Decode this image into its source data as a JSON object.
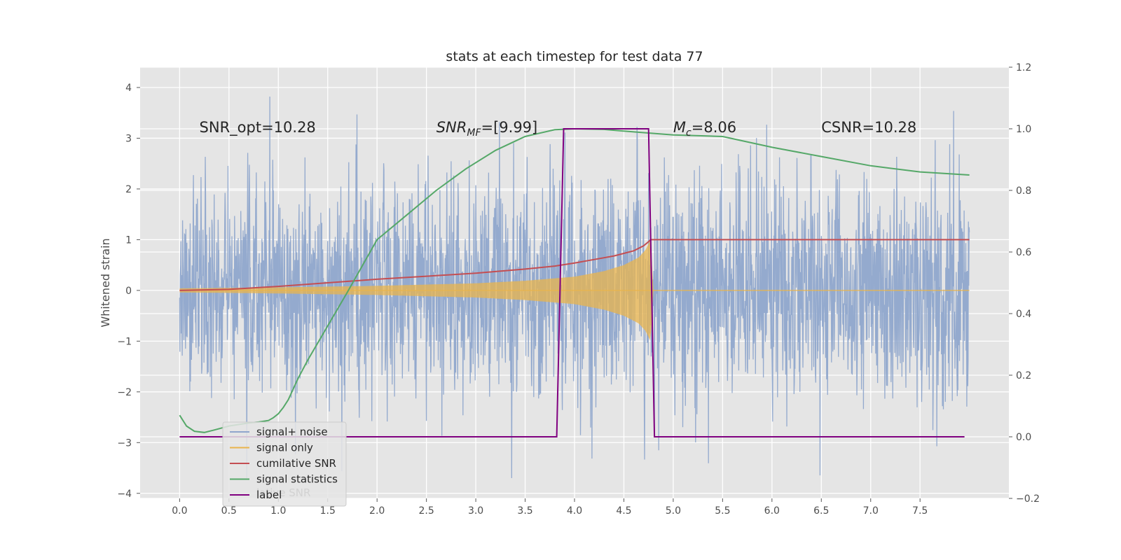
{
  "chart_data": {
    "type": "line",
    "title": "stats at each timestep for test data 77",
    "ylabel": "Whitened strain",
    "xlabel": "",
    "xlim": [
      -0.4,
      8.4
    ],
    "ylim": [
      -4.1,
      4.4
    ],
    "y2lim": [
      -0.2,
      1.2
    ],
    "xticks": [
      0.0,
      0.5,
      1.0,
      1.5,
      2.0,
      2.5,
      3.0,
      3.5,
      4.0,
      4.5,
      5.0,
      5.5,
      6.0,
      6.5,
      7.0,
      7.5
    ],
    "xtick_labels": [
      "0.0",
      "0.5",
      "1.0",
      "1.5",
      "2.0",
      "2.5",
      "3.0",
      "3.5",
      "4.0",
      "4.5",
      "5.0",
      "5.5",
      "6.0",
      "6.5",
      "7.0",
      "7.5"
    ],
    "yticks": [
      -4,
      -3,
      -2,
      -1,
      0,
      1,
      2,
      3,
      4
    ],
    "ytick_labels": [
      "−4",
      "−3",
      "−2",
      "−1",
      "0",
      "1",
      "2",
      "3",
      "4"
    ],
    "y2ticks": [
      -0.2,
      0.0,
      0.2,
      0.4,
      0.6,
      0.8,
      1.0,
      1.2
    ],
    "y2tick_labels": [
      "−0.2",
      "0.0",
      "0.2",
      "0.4",
      "0.6",
      "0.8",
      "1.0",
      "1.2"
    ],
    "grid": true,
    "legend": {
      "placement": "lower-left",
      "ghost_text": "lative SNR"
    },
    "annotations": [
      {
        "x": 0.2,
        "y": 3.2,
        "text": "SNR_opt=10.28"
      },
      {
        "x": 2.6,
        "y": 3.2,
        "text": "SNR_MF=[9.99]"
      },
      {
        "x": 5.0,
        "y": 3.2,
        "text": "M_c=8.06"
      },
      {
        "x": 6.5,
        "y": 3.2,
        "text": "CSNR=10.28"
      }
    ],
    "series": [
      {
        "name": "signal+ noise",
        "axis": "left",
        "color": "#8fa6cc",
        "kind": "noise",
        "x_range": [
          0.0,
          8.0
        ],
        "typical_amplitude": 1.1,
        "min": -3.7,
        "max": 4.0
      },
      {
        "name": "signal only",
        "axis": "left",
        "color": "#e9b44c",
        "kind": "chirp",
        "x_range": [
          0.0,
          8.0
        ],
        "merger_time": 4.77,
        "envelope": {
          "x": [
            0.0,
            1.0,
            2.0,
            3.0,
            3.5,
            4.0,
            4.3,
            4.5,
            4.65,
            4.72,
            4.77,
            4.8
          ],
          "y": [
            0.04,
            0.06,
            0.09,
            0.14,
            0.19,
            0.27,
            0.38,
            0.5,
            0.65,
            0.8,
            1.0,
            0.0
          ]
        }
      },
      {
        "name": "cumilative SNR",
        "axis": "left",
        "color": "#c44e52",
        "x": [
          0.0,
          0.5,
          1.0,
          1.5,
          2.0,
          2.5,
          3.0,
          3.5,
          3.8,
          4.0,
          4.2,
          4.4,
          4.6,
          4.7,
          4.75,
          4.77,
          4.8,
          5.5,
          6.5,
          8.0
        ],
        "y": [
          0.0,
          0.02,
          0.08,
          0.15,
          0.22,
          0.28,
          0.34,
          0.42,
          0.48,
          0.54,
          0.61,
          0.68,
          0.78,
          0.88,
          0.96,
          1.0,
          1.0,
          1.0,
          1.0,
          1.0
        ]
      },
      {
        "name": "signal statistics",
        "axis": "right",
        "color": "#55a868",
        "x": [
          0.0,
          0.07,
          0.15,
          0.25,
          0.35,
          0.5,
          0.7,
          0.8,
          0.9,
          0.95,
          1.0,
          1.05,
          1.1,
          1.2,
          1.3,
          1.5,
          1.7,
          2.0,
          2.3,
          2.6,
          2.9,
          3.2,
          3.5,
          3.8,
          4.0,
          4.3,
          4.6,
          5.0,
          5.5,
          6.0,
          6.5,
          7.0,
          7.5,
          8.0
        ],
        "y": [
          0.07,
          0.035,
          0.018,
          0.014,
          0.022,
          0.035,
          0.045,
          0.048,
          0.053,
          0.062,
          0.075,
          0.095,
          0.12,
          0.19,
          0.25,
          0.36,
          0.47,
          0.64,
          0.72,
          0.8,
          0.87,
          0.93,
          0.975,
          0.997,
          1.0,
          0.998,
          0.99,
          0.98,
          0.975,
          0.94,
          0.91,
          0.88,
          0.86,
          0.85
        ]
      },
      {
        "name": "label",
        "axis": "right",
        "color": "#800080",
        "x": [
          0.0,
          3.82,
          3.89,
          4.75,
          4.81,
          7.95
        ],
        "y": [
          0.0,
          0.0,
          1.0,
          1.0,
          0.0,
          0.0
        ]
      }
    ]
  }
}
